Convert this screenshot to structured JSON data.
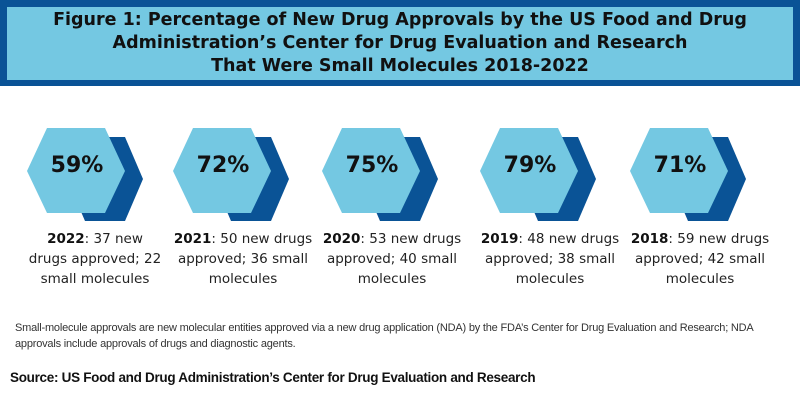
{
  "title": {
    "line1": "Figure 1: Percentage of New Drug Approvals by the US Food and Drug",
    "line2": "Administration’s Center for Drug Evaluation and Research",
    "line3": "That Were Small Molecules 2018-2022"
  },
  "colors": {
    "light_blue": "#74c8e2",
    "dark_blue": "#0a5396"
  },
  "items": [
    {
      "percent": "59%",
      "year": "2022",
      "line_a": ": 37 new",
      "line_b": "drugs approved; 22",
      "line_c": "small molecules"
    },
    {
      "percent": "72%",
      "year": "2021",
      "line_a": ": 50 new drugs",
      "line_b": "approved; 36 small",
      "line_c": "molecules"
    },
    {
      "percent": "75%",
      "year": "2020",
      "line_a": ": 53 new drugs",
      "line_b": "approved; 40 small",
      "line_c": "molecules"
    },
    {
      "percent": "79%",
      "year": "2019",
      "line_a": ": 48 new drugs",
      "line_b": "approved; 38 small",
      "line_c": "molecules"
    },
    {
      "percent": "71%",
      "year": "2018",
      "line_a": ": 59 new drugs",
      "line_b": "approved; 42 small",
      "line_c": "molecules"
    }
  ],
  "note": "Small-molecule approvals are new molecular entities approved via a new drug application (NDA) by the FDA’s Center for Drug Evaluation and Research; NDA approvals include approvals of drugs and diagnostic agents.",
  "source": "Source: US Food and Drug Administration’s Center for Drug Evaluation and Research"
}
